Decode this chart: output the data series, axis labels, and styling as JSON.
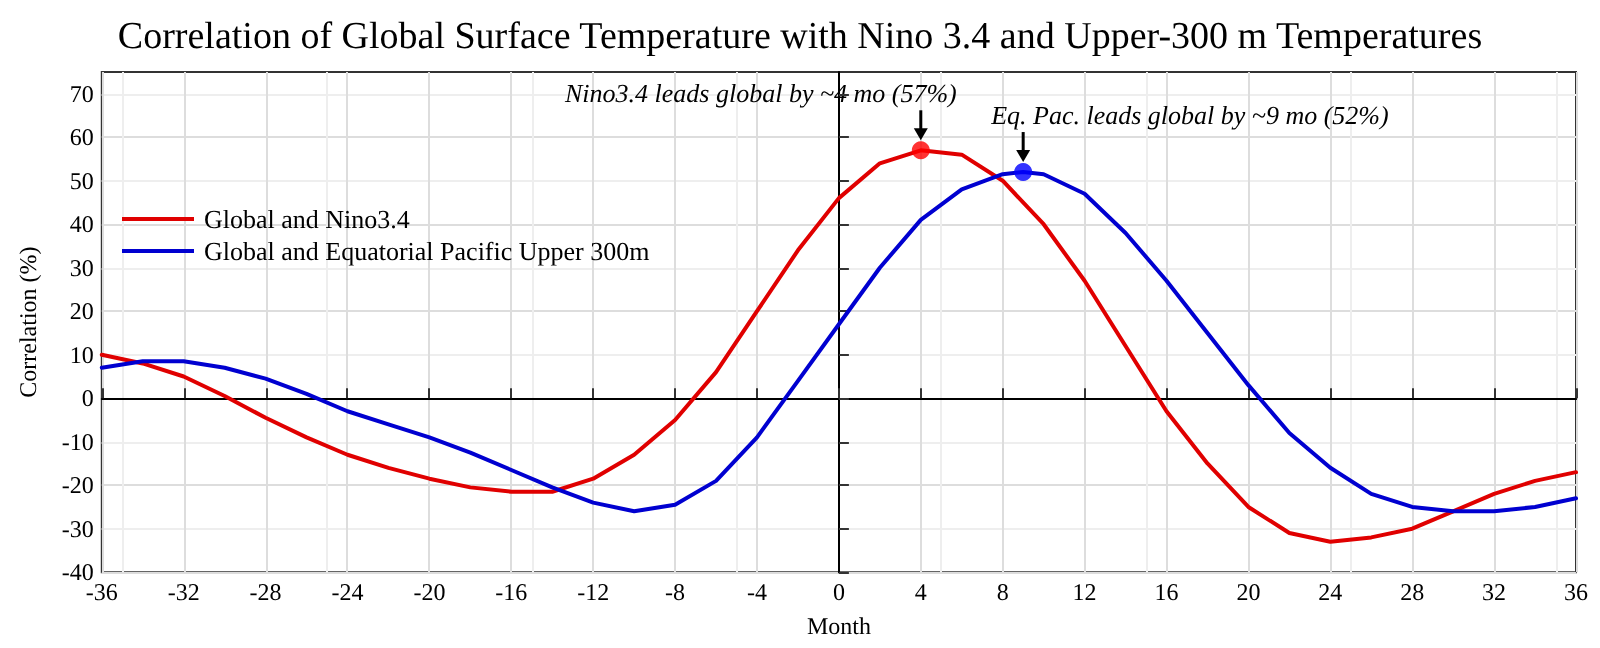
{
  "chart_data": {
    "type": "line",
    "title": "Correlation of Global Surface Temperature with Nino 3.4 and Upper-300 m Temperatures",
    "xlabel": "Month",
    "ylabel": "Correlation (%)",
    "xlim": [
      -36,
      36
    ],
    "xticks": [
      -36,
      -32,
      -28,
      -24,
      -20,
      -16,
      -12,
      -8,
      -4,
      0,
      4,
      8,
      12,
      16,
      20,
      24,
      28,
      32,
      36
    ],
    "ylim": [
      -40,
      75
    ],
    "yticks": [
      -40,
      -30,
      -20,
      -10,
      0,
      10,
      20,
      30,
      40,
      50,
      60,
      70
    ],
    "grid": true,
    "legend": "upper left",
    "line_style": "solid",
    "marker": "none",
    "series": [
      {
        "name": "Global and Nino3.4",
        "color": "#e00000",
        "x": [
          -36,
          -34,
          -32,
          -30,
          -28,
          -26,
          -24,
          -22,
          -20,
          -18,
          -16,
          -14,
          -12,
          -10,
          -8,
          -6,
          -4,
          -2,
          0,
          2,
          4,
          6,
          8,
          10,
          12,
          14,
          16,
          18,
          20,
          22,
          24,
          26,
          28,
          30,
          32,
          34,
          36
        ],
        "values": [
          10,
          8,
          5,
          0.5,
          -4.5,
          -9,
          -13,
          -16,
          -18.5,
          -20.5,
          -21.5,
          -21.5,
          -18.5,
          -13,
          -5,
          6,
          20,
          34,
          46,
          54,
          57,
          56,
          50,
          40,
          27,
          12,
          -3,
          -15,
          -25,
          -31,
          -33,
          -32,
          -30,
          -26,
          -22,
          -19,
          -17
        ]
      },
      {
        "name": "Global and Equatorial Pacific Upper 300m",
        "color": "#0000d0",
        "x": [
          -36,
          -34,
          -32,
          -30,
          -28,
          -26,
          -24,
          -22,
          -20,
          -18,
          -16,
          -14,
          -12,
          -10,
          -8,
          -6,
          -4,
          -2,
          0,
          2,
          4,
          6,
          8,
          9,
          10,
          12,
          14,
          16,
          18,
          20,
          22,
          24,
          26,
          28,
          30,
          32,
          34,
          36
        ],
        "values": [
          7,
          8.5,
          8.5,
          7,
          4.5,
          1,
          -3,
          -6,
          -9,
          -12.5,
          -16.5,
          -20.5,
          -24,
          -26,
          -24.5,
          -19,
          -9,
          4,
          17,
          30,
          41,
          48,
          51.5,
          52,
          51.5,
          47,
          38,
          27,
          15,
          3,
          -8,
          -16,
          -22,
          -25,
          -26,
          -26,
          -25,
          -23
        ]
      },
      {
        "type": "scatter",
        "color": "#ff0000",
        "marker": "circle",
        "x": [
          4
        ],
        "values": [
          57
        ]
      },
      {
        "type": "scatter",
        "color": "#0000ff",
        "marker": "circle",
        "x": [
          9
        ],
        "values": [
          52
        ]
      }
    ],
    "annotations": [
      {
        "text": "Nino3.4 leads global by ~4 mo (57%)",
        "x": 4,
        "y": 57
      },
      {
        "text": "Eq. Pac. leads global by ~9 mo (52%)",
        "x": 9,
        "y": 52
      }
    ]
  }
}
